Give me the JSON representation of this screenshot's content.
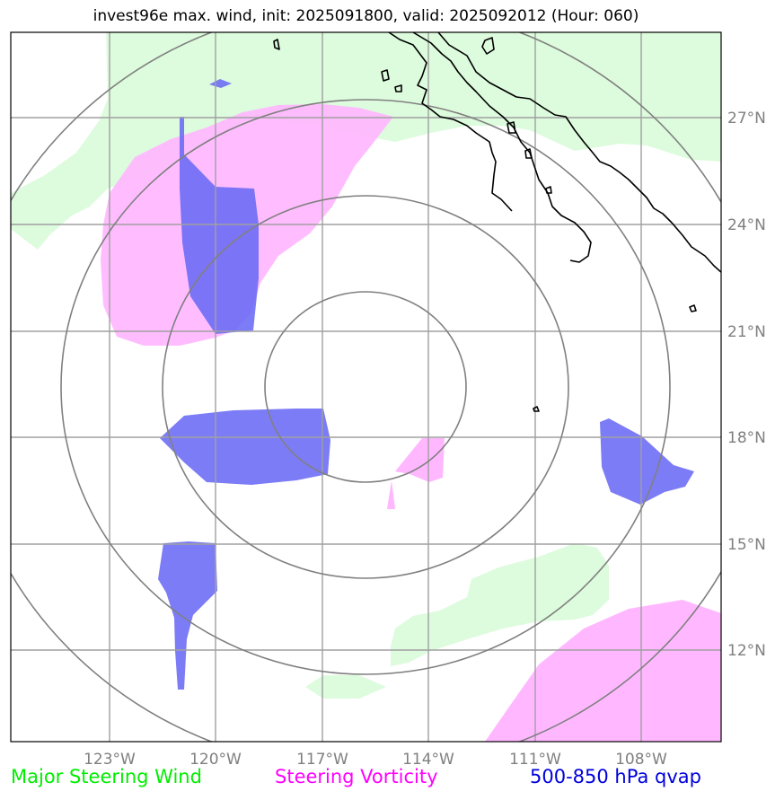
{
  "title": "invest96e max. wind, init: 2025091800, valid: 2025092012 (Hour: 060)",
  "map": {
    "lon_ticks": [
      "123°W",
      "120°W",
      "117°W",
      "114°W",
      "111°W",
      "108°W"
    ],
    "lat_ticks": [
      "27°N",
      "24°N",
      "21°N",
      "18°N",
      "15°N",
      "12°N"
    ],
    "center": {
      "lon": -116.0,
      "lat": 19.0
    },
    "extent": {
      "lon": [
        -125.7,
        -105.6
      ],
      "lat": [
        9.0,
        29.0
      ]
    },
    "range_rings": 4,
    "gridlines": true,
    "colors": {
      "steering_wind": "#ddfbdd",
      "steering_vorticity": "#ffb8ff",
      "qvap": "#6a6af5",
      "grid": "#a0a0a0",
      "rings": "#808080",
      "coast": "#000000"
    }
  },
  "legend": {
    "wind": "Major Steering Wind",
    "vorticity": "Steering Vorticity",
    "qvap": "500-850 hPa qvap"
  }
}
